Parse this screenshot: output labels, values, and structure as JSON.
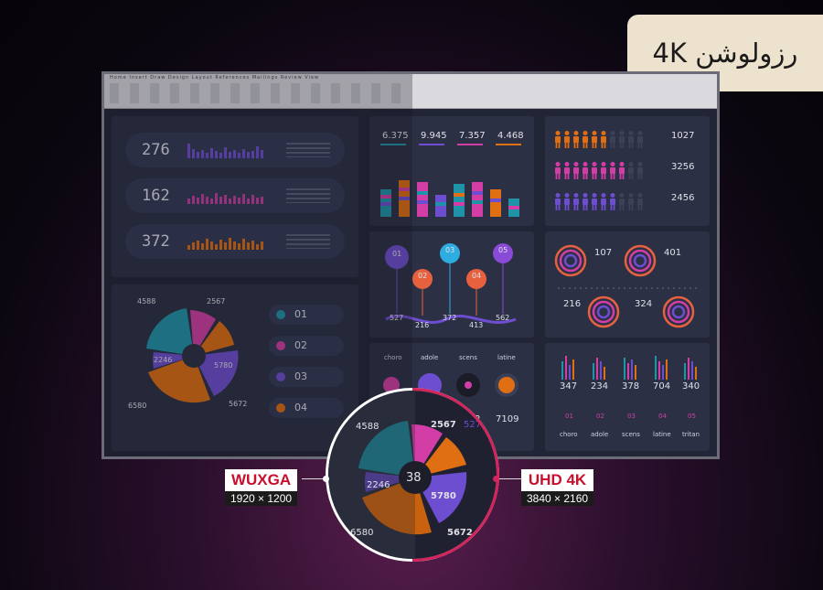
{
  "title": "رزولوشن 4K",
  "colors": {
    "teal": "#1f93a8",
    "magenta": "#d23ea6",
    "purple": "#6e4ed0",
    "orange": "#e06e12",
    "pink_accent": "#d4245c"
  },
  "ribbon": {
    "tabs": "Home  Insert  Draw  Design  Layout  References  Mailings  Review  View"
  },
  "sparkline_panel": {
    "rows": [
      {
        "value": "276",
        "color": "#6e4ed0"
      },
      {
        "value": "162",
        "color": "#c23da0"
      },
      {
        "value": "372",
        "color": "#e06e12"
      }
    ]
  },
  "pie_panel": {
    "outer_labels": [
      "4588",
      "2567",
      "2246",
      "5780",
      "5672",
      "6580"
    ],
    "legend": [
      {
        "code": "01",
        "color": "#1f93a8"
      },
      {
        "code": "02",
        "color": "#d23ea6"
      },
      {
        "code": "03",
        "color": "#6e4ed0"
      },
      {
        "code": "04",
        "color": "#e06e12"
      }
    ]
  },
  "bar_panel": {
    "values": [
      "6.375",
      "9.945",
      "7.357",
      "4.468"
    ]
  },
  "people_panel": {
    "values": [
      "1027",
      "3256",
      "2456"
    ],
    "colors": [
      "#e06e12",
      "#d23ea6",
      "#6e4ed0"
    ]
  },
  "pins_panel": {
    "pins": [
      "01",
      "02",
      "03",
      "04",
      "05"
    ],
    "values": [
      "527",
      "216",
      "372",
      "413",
      "562"
    ]
  },
  "donut_panel": {
    "values": [
      "107",
      "401",
      "216",
      "324"
    ]
  },
  "circles_panel": {
    "headers": [
      "choro",
      "adole",
      "scens",
      "latine"
    ],
    "values": [
      "9",
      "5272",
      "7109"
    ]
  },
  "bars_bottom": {
    "values": [
      "347",
      "234",
      "378",
      "704",
      "340"
    ],
    "codes": [
      "01",
      "02",
      "03",
      "04",
      "05"
    ],
    "names": [
      "choro",
      "adole",
      "scens",
      "latine",
      "tritan"
    ]
  },
  "magnifier": {
    "center": "38",
    "labels": [
      "4588",
      "2567",
      "527",
      "2246",
      "5780",
      "5672",
      "6580"
    ]
  },
  "resolutions": {
    "left": {
      "name": "WUXGA",
      "dims": "1920 × 1200",
      "color": "#c8102e"
    },
    "right": {
      "name": "UHD 4K",
      "dims": "3840 × 2160",
      "color": "#c8102e"
    }
  }
}
